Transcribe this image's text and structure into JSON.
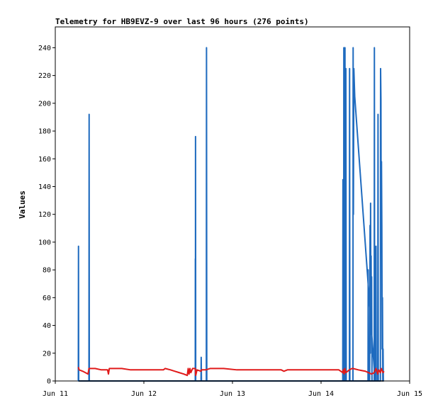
{
  "chart_data": {
    "type": "line",
    "title": "Telemetry for HB9EVZ-9 over last 96 hours (276 points)",
    "xlabel": "",
    "ylabel": "Values",
    "xlim": [
      0,
      4
    ],
    "ylim": [
      0,
      255
    ],
    "x_ticks": [
      {
        "x": 0,
        "label": "Jun 11"
      },
      {
        "x": 1,
        "label": "Jun 12"
      },
      {
        "x": 2,
        "label": "Jun 13"
      },
      {
        "x": 3,
        "label": "Jun 14"
      },
      {
        "x": 4,
        "label": "Jun 15"
      }
    ],
    "y_ticks": [
      0,
      20,
      40,
      60,
      80,
      100,
      120,
      140,
      160,
      180,
      200,
      220,
      240
    ],
    "grid": false,
    "legend": "none",
    "colors": {
      "blue": "#1f6bbf",
      "red": "#e01a1a",
      "black": "#000000"
    },
    "series": [
      {
        "color": "blue",
        "points": [
          [
            0.26,
            0
          ],
          [
            0.262,
            97
          ],
          [
            0.264,
            0
          ],
          [
            0.38,
            0
          ],
          [
            0.382,
            192
          ],
          [
            0.384,
            0
          ],
          [
            1.58,
            0
          ],
          [
            1.581,
            88
          ],
          [
            1.582,
            0
          ],
          [
            1.583,
            176
          ],
          [
            1.585,
            0
          ],
          [
            1.645,
            0
          ],
          [
            1.647,
            17
          ],
          [
            1.65,
            0
          ],
          [
            1.705,
            0
          ],
          [
            1.707,
            240
          ],
          [
            1.71,
            0
          ],
          [
            3.53,
            0
          ],
          [
            3.532,
            80
          ],
          [
            3.535,
            0
          ],
          [
            3.548,
            0
          ],
          [
            3.55,
            30
          ],
          [
            3.553,
            112
          ],
          [
            3.556,
            20
          ],
          [
            3.559,
            128
          ],
          [
            3.562,
            55
          ],
          [
            3.565,
            90
          ],
          [
            3.568,
            40
          ],
          [
            3.571,
            75
          ],
          [
            3.575,
            0
          ],
          [
            3.6,
            0
          ],
          [
            3.602,
            240
          ],
          [
            3.605,
            0
          ],
          [
            3.245,
            0
          ],
          [
            3.247,
            145
          ],
          [
            3.25,
            0
          ],
          [
            3.255,
            0
          ],
          [
            3.257,
            240
          ],
          [
            3.26,
            0
          ],
          [
            3.268,
            0
          ],
          [
            3.27,
            240
          ],
          [
            3.274,
            0
          ],
          [
            3.278,
            0
          ],
          [
            3.28,
            225
          ],
          [
            3.284,
            0
          ],
          [
            3.32,
            0
          ],
          [
            3.322,
            225
          ],
          [
            3.325,
            0
          ],
          [
            3.36,
            0
          ],
          [
            3.362,
            240
          ],
          [
            3.365,
            120
          ],
          [
            3.37,
            225
          ],
          [
            3.38,
            205
          ],
          [
            3.61,
            0
          ],
          [
            3.617,
            0
          ],
          [
            3.62,
            97
          ],
          [
            3.623,
            0
          ],
          [
            3.64,
            0
          ],
          [
            3.643,
            192
          ],
          [
            3.646,
            0
          ],
          [
            3.67,
            0
          ],
          [
            3.672,
            225
          ],
          [
            3.676,
            202
          ],
          [
            3.679,
            100
          ],
          [
            3.682,
            158
          ],
          [
            3.686,
            112
          ],
          [
            3.69,
            23
          ],
          [
            3.693,
            60
          ],
          [
            3.697,
            0
          ],
          [
            3.7,
            23
          ],
          [
            3.703,
            0
          ]
        ]
      },
      {
        "color": "red",
        "points": [
          [
            0.26,
            10
          ],
          [
            0.27,
            8
          ],
          [
            0.31,
            7
          ],
          [
            0.37,
            5
          ],
          [
            0.38,
            9
          ],
          [
            0.45,
            9
          ],
          [
            0.52,
            8
          ],
          [
            0.55,
            8
          ],
          [
            0.58,
            8
          ],
          [
            0.59,
            8
          ],
          [
            0.6,
            5
          ],
          [
            0.61,
            9
          ],
          [
            0.68,
            9
          ],
          [
            0.75,
            9
          ],
          [
            0.85,
            8
          ],
          [
            0.95,
            8
          ],
          [
            1.05,
            8
          ],
          [
            1.15,
            8
          ],
          [
            1.22,
            8
          ],
          [
            1.24,
            9
          ],
          [
            1.3,
            8
          ],
          [
            1.35,
            7
          ],
          [
            1.4,
            6
          ],
          [
            1.45,
            5
          ],
          [
            1.49,
            4
          ],
          [
            1.5,
            9
          ],
          [
            1.51,
            5
          ],
          [
            1.52,
            9
          ],
          [
            1.53,
            6
          ],
          [
            1.55,
            9
          ],
          [
            1.58,
            9
          ],
          [
            1.585,
            4
          ],
          [
            1.6,
            8
          ],
          [
            1.645,
            7
          ],
          [
            1.65,
            8
          ],
          [
            1.7,
            8
          ],
          [
            1.75,
            9
          ],
          [
            1.9,
            9
          ],
          [
            2.05,
            8
          ],
          [
            2.2,
            8
          ],
          [
            2.35,
            8
          ],
          [
            2.48,
            8
          ],
          [
            2.55,
            8
          ],
          [
            2.58,
            7
          ],
          [
            2.62,
            8
          ],
          [
            2.75,
            8
          ],
          [
            2.9,
            8
          ],
          [
            3.05,
            8
          ],
          [
            3.2,
            8
          ],
          [
            3.245,
            6
          ],
          [
            3.25,
            8
          ],
          [
            3.26,
            5
          ],
          [
            3.268,
            9
          ],
          [
            3.28,
            6
          ],
          [
            3.32,
            8
          ],
          [
            3.35,
            9
          ],
          [
            3.36,
            9
          ],
          [
            3.42,
            8
          ],
          [
            3.5,
            7
          ],
          [
            3.57,
            5
          ],
          [
            3.6,
            6
          ],
          [
            3.62,
            9
          ],
          [
            3.64,
            5
          ],
          [
            3.65,
            8
          ],
          [
            3.67,
            6
          ],
          [
            3.68,
            9
          ],
          [
            3.7,
            6
          ],
          [
            3.71,
            7
          ]
        ]
      },
      {
        "color": "black",
        "points": [
          [
            0.26,
            0
          ],
          [
            3.71,
            0
          ]
        ]
      }
    ]
  }
}
